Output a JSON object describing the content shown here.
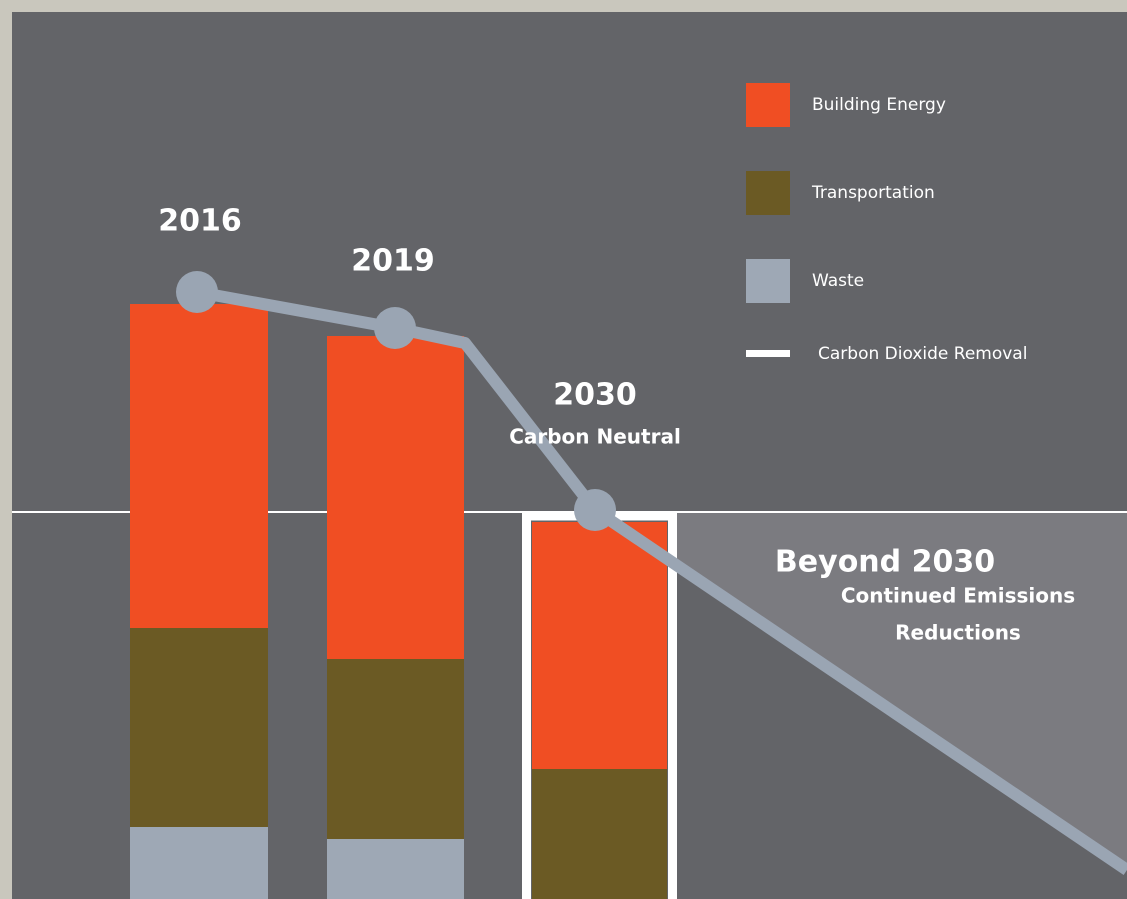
{
  "chart_data": {
    "type": "bar",
    "stacked": true,
    "categories": [
      "2016",
      "2019",
      "2030"
    ],
    "category_notes": [
      null,
      null,
      "Carbon Neutral"
    ],
    "series": [
      {
        "name": "Waste",
        "color": "#9ea8b5",
        "values": [
          72,
          60,
          null
        ]
      },
      {
        "name": "Transportation",
        "color": "#6b5a24",
        "values": [
          199,
          180,
          130
        ]
      },
      {
        "name": "Building Energy",
        "color": "#f04e23",
        "values": [
          324,
          323,
          247
        ]
      }
    ],
    "legend_order": [
      2,
      1,
      0
    ],
    "removal": {
      "name": "Carbon Dioxide Removal",
      "color": "#ffffff"
    },
    "trajectory": {
      "color": "#9aa5b3",
      "values": [
        607,
        571,
        389
      ]
    },
    "beyond": {
      "title": "Beyond 2030",
      "lines": [
        "Continued Emissions",
        "Reductions"
      ]
    }
  }
}
